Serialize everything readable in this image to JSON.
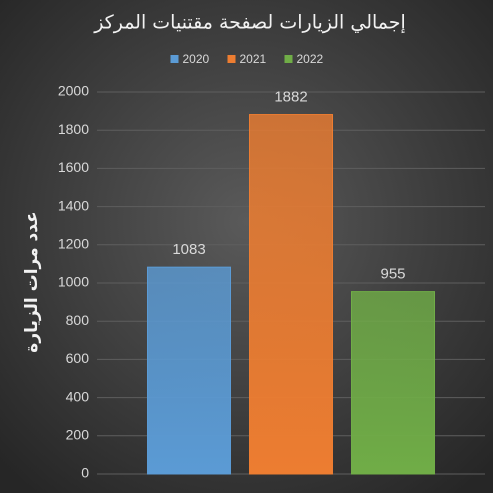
{
  "chart_data": {
    "type": "bar",
    "title": "إجمالي الزيارات لصفحة مقتنيات المركز",
    "y_label": "عدد مرات الزيارة",
    "categories": [
      null
    ],
    "series": [
      {
        "name": "2020",
        "color": "#5b9bd5",
        "values": [
          1083
        ]
      },
      {
        "name": "2021",
        "color": "#ed7d31",
        "values": [
          1882
        ]
      },
      {
        "name": "2022",
        "color": "#70ad47",
        "values": [
          955
        ]
      }
    ],
    "ylim": [
      0,
      2000
    ],
    "yticks": [
      0,
      200,
      400,
      600,
      800,
      1000,
      1200,
      1400,
      1600,
      1800,
      2000
    ],
    "grid": true,
    "legend": "top",
    "data_labels": true
  }
}
